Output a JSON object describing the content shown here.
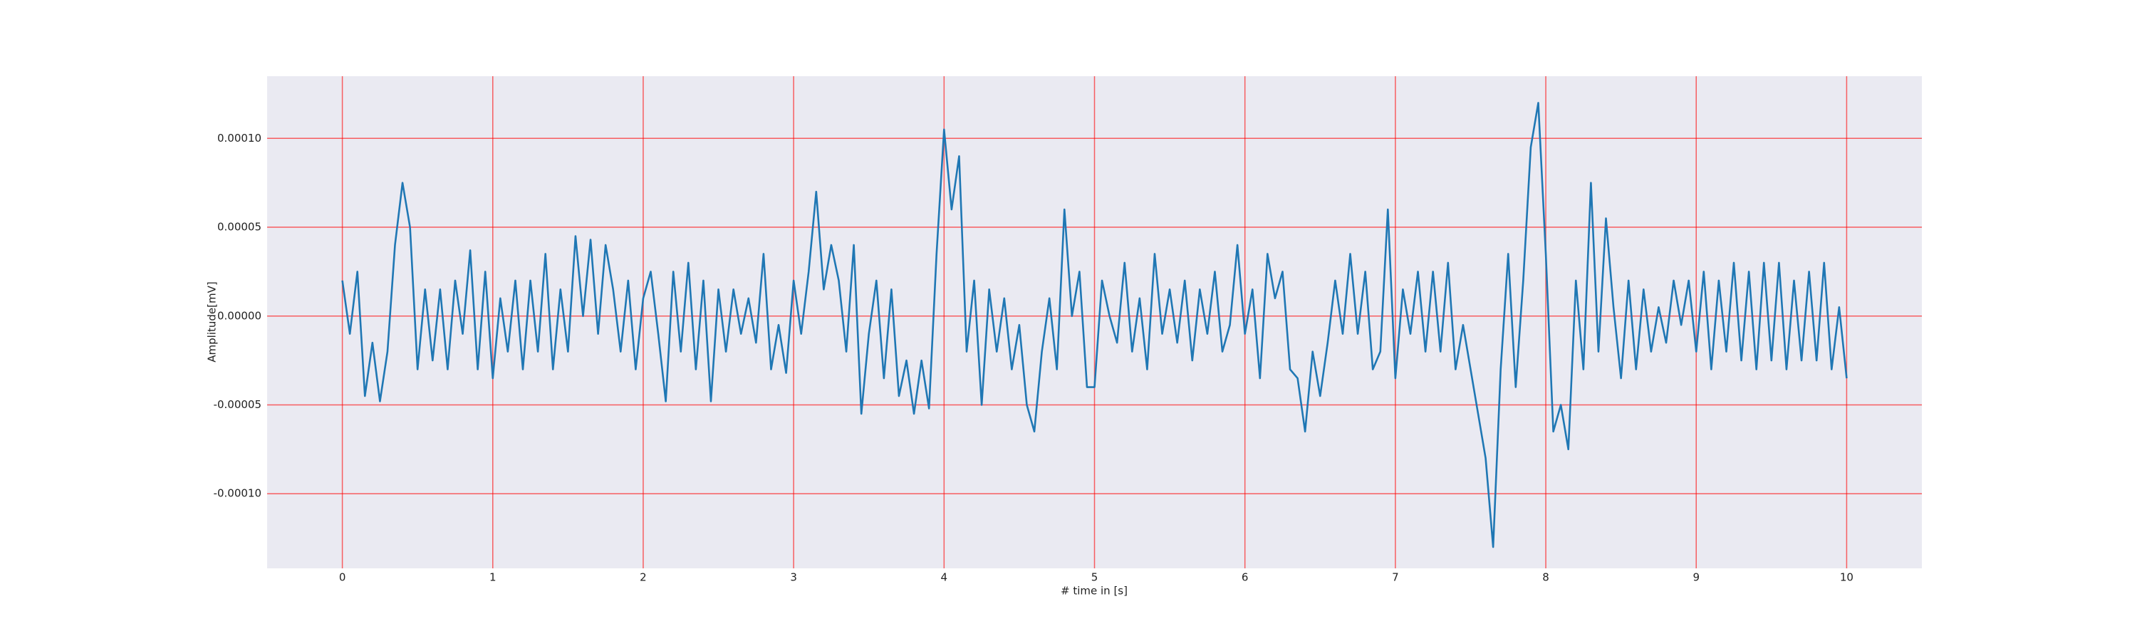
{
  "chart_data": {
    "type": "line",
    "x_label": "# time in [s]",
    "y_label": "Amplitude[mV]",
    "x": [
      0,
      0.05,
      0.1,
      0.15,
      0.2,
      0.25,
      0.3,
      0.35,
      0.4,
      0.45,
      0.5,
      0.55,
      0.6,
      0.65,
      0.7,
      0.75,
      0.8,
      0.85,
      0.9,
      0.95,
      1,
      1.05,
      1.1,
      1.15,
      1.2,
      1.25,
      1.3,
      1.35,
      1.4,
      1.45,
      1.5,
      1.55,
      1.6,
      1.65,
      1.7,
      1.75,
      1.8,
      1.85,
      1.9,
      1.95,
      2,
      2.05,
      2.1,
      2.15,
      2.2,
      2.25,
      2.3,
      2.35,
      2.4,
      2.45,
      2.5,
      2.55,
      2.6,
      2.65,
      2.7,
      2.75,
      2.8,
      2.85,
      2.9,
      2.95,
      3,
      3.05,
      3.1,
      3.15,
      3.2,
      3.25,
      3.3,
      3.35,
      3.4,
      3.45,
      3.5,
      3.55,
      3.6,
      3.65,
      3.7,
      3.75,
      3.8,
      3.85,
      3.9,
      3.95,
      4,
      4.05,
      4.1,
      4.15,
      4.2,
      4.25,
      4.3,
      4.35,
      4.4,
      4.45,
      4.5,
      4.55,
      4.6,
      4.65,
      4.7,
      4.75,
      4.8,
      4.85,
      4.9,
      4.95,
      5,
      5.05,
      5.1,
      5.15,
      5.2,
      5.25,
      5.3,
      5.35,
      5.4,
      5.45,
      5.5,
      5.55,
      5.6,
      5.65,
      5.7,
      5.75,
      5.8,
      5.85,
      5.9,
      5.95,
      6,
      6.05,
      6.1,
      6.15,
      6.2,
      6.25,
      6.3,
      6.35,
      6.4,
      6.45,
      6.5,
      6.55,
      6.6,
      6.65,
      6.7,
      6.75,
      6.8,
      6.85,
      6.9,
      6.95,
      7,
      7.05,
      7.1,
      7.15,
      7.2,
      7.25,
      7.3,
      7.35,
      7.4,
      7.45,
      7.5,
      7.55,
      7.6,
      7.65,
      7.7,
      7.75,
      7.8,
      7.85,
      7.9,
      7.95,
      8,
      8.05,
      8.1,
      8.15,
      8.2,
      8.25,
      8.3,
      8.35,
      8.4,
      8.45,
      8.5,
      8.55,
      8.6,
      8.65,
      8.7,
      8.75,
      8.8,
      8.85,
      8.9,
      8.95,
      9,
      9.05,
      9.1,
      9.15,
      9.2,
      9.25,
      9.3,
      9.35,
      9.4,
      9.45,
      9.5,
      9.55,
      9.6,
      9.65,
      9.7,
      9.75,
      9.8,
      9.85,
      9.9,
      9.95,
      10
    ],
    "values": [
      2e-05,
      -1e-05,
      2.5e-05,
      -4.5e-05,
      -1.5e-05,
      -4.8e-05,
      -2e-05,
      4e-05,
      7.5e-05,
      5e-05,
      -3e-05,
      1.5e-05,
      -2.5e-05,
      1.5e-05,
      -3e-05,
      2e-05,
      -1e-05,
      3.7e-05,
      -3e-05,
      2.5e-05,
      -3.5e-05,
      1e-05,
      -2e-05,
      2e-05,
      -3e-05,
      2e-05,
      -2e-05,
      3.5e-05,
      -3e-05,
      1.5e-05,
      -2e-05,
      4.5e-05,
      0,
      4.3e-05,
      -1e-05,
      4e-05,
      1.5e-05,
      -2e-05,
      2e-05,
      -3e-05,
      1e-05,
      2.5e-05,
      -1e-05,
      -4.8e-05,
      2.5e-05,
      -2e-05,
      3e-05,
      -3e-05,
      2e-05,
      -4.8e-05,
      1.5e-05,
      -2e-05,
      1.5e-05,
      -1e-05,
      1e-05,
      -1.5e-05,
      3.5e-05,
      -3e-05,
      -5e-06,
      -3.2e-05,
      2e-05,
      -1e-05,
      2.5e-05,
      7e-05,
      1.5e-05,
      4e-05,
      2e-05,
      -2e-05,
      4e-05,
      -5.5e-05,
      -1e-05,
      2e-05,
      -3.5e-05,
      1.5e-05,
      -4.5e-05,
      -2.5e-05,
      -5.5e-05,
      -2.5e-05,
      -5.2e-05,
      3.5e-05,
      0.000105,
      6e-05,
      9e-05,
      -2e-05,
      2e-05,
      -5e-05,
      1.5e-05,
      -2e-05,
      1e-05,
      -3e-05,
      -5e-06,
      -5e-05,
      -6.5e-05,
      -2e-05,
      1e-05,
      -3e-05,
      6e-05,
      0,
      2.5e-05,
      -4e-05,
      -4e-05,
      2e-05,
      0,
      -1.5e-05,
      3e-05,
      -2e-05,
      1e-05,
      -3e-05,
      3.5e-05,
      -1e-05,
      1.5e-05,
      -1.5e-05,
      2e-05,
      -2.5e-05,
      1.5e-05,
      -1e-05,
      2.5e-05,
      -2e-05,
      -5e-06,
      4e-05,
      -1e-05,
      1.5e-05,
      -3.5e-05,
      3.5e-05,
      1e-05,
      2.5e-05,
      -3e-05,
      -3.5e-05,
      -6.5e-05,
      -2e-05,
      -4.5e-05,
      -1.5e-05,
      2e-05,
      -1e-05,
      3.5e-05,
      -1e-05,
      2.5e-05,
      -3e-05,
      -2e-05,
      6e-05,
      -3.5e-05,
      1.5e-05,
      -1e-05,
      2.5e-05,
      -2e-05,
      2.5e-05,
      -2e-05,
      3e-05,
      -3e-05,
      -5e-06,
      -3e-05,
      -5.5e-05,
      -8e-05,
      -0.00013,
      -3e-05,
      3.5e-05,
      -4e-05,
      2e-05,
      9.5e-05,
      0.00012,
      3.5e-05,
      -6.5e-05,
      -5e-05,
      -7.5e-05,
      2e-05,
      -3e-05,
      7.5e-05,
      -2e-05,
      5.5e-05,
      5e-06,
      -3.5e-05,
      2e-05,
      -3e-05,
      1.5e-05,
      -2e-05,
      5e-06,
      -1.5e-05,
      2e-05,
      -5e-06,
      2e-05,
      -2e-05,
      2.5e-05,
      -3e-05,
      2e-05,
      -2e-05,
      3e-05,
      -2.5e-05,
      2.5e-05,
      -3e-05,
      3e-05,
      -2.5e-05,
      3e-05,
      -3e-05,
      2e-05,
      -2.5e-05,
      2.5e-05,
      -2.5e-05,
      3e-05,
      -3e-05,
      5e-06,
      -3.5e-05
    ],
    "color": "#1f77b4",
    "xlim": [
      -0.5,
      10.5
    ],
    "xticks": [
      0,
      1,
      2,
      3,
      4,
      5,
      6,
      7,
      8,
      9,
      10
    ],
    "ylim": [
      -0.000142,
      0.000135
    ],
    "yticks": [
      {
        "value": -0.0001,
        "label": "-0.00010"
      },
      {
        "value": -5e-05,
        "label": "-0.00005"
      },
      {
        "value": 0,
        "label": "0.00000"
      },
      {
        "value": 5e-05,
        "label": "0.00005"
      },
      {
        "value": 0.0001,
        "label": "0.00010"
      }
    ],
    "grid": true,
    "grid_color": "#ff0000"
  }
}
